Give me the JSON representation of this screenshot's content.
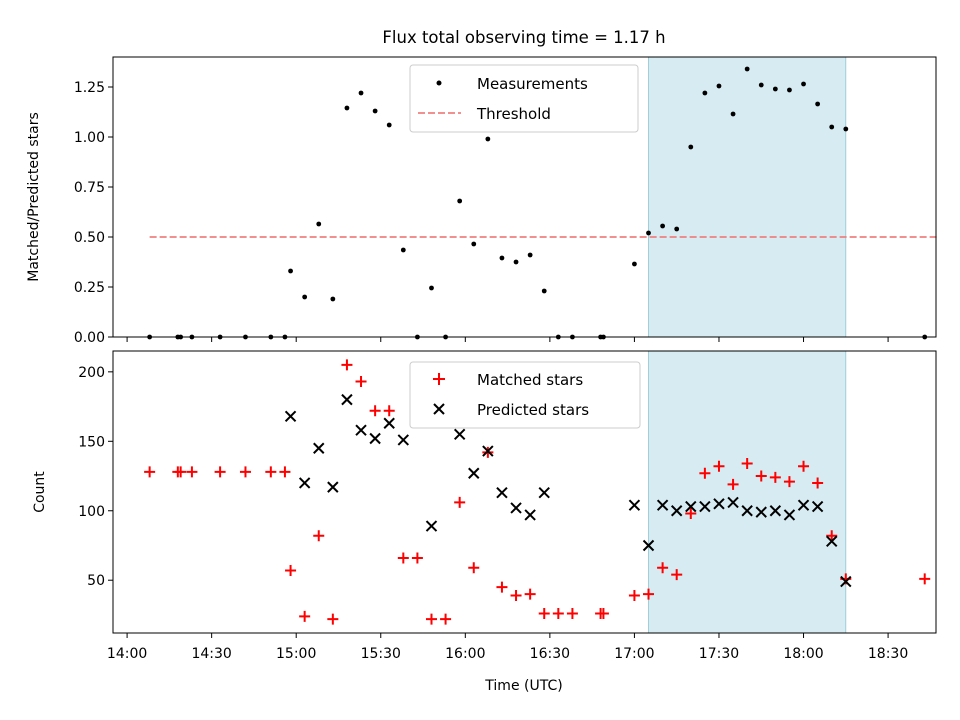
{
  "chart_data": {
    "title": "Flux total observing time = 1.17 h",
    "xlabel": "Time (UTC)",
    "x_tick_labels": [
      "14:00",
      "14:30",
      "15:00",
      "15:30",
      "16:00",
      "16:30",
      "17:00",
      "17:30",
      "18:00",
      "18:30"
    ],
    "x_ticks_min": [
      840,
      870,
      900,
      930,
      960,
      990,
      1020,
      1050,
      1080,
      1110
    ],
    "xlim_min": [
      835,
      1127
    ],
    "shaded_span_min": [
      1025,
      1095
    ],
    "shade_color": "#add8e6",
    "panels": [
      {
        "type": "scatter",
        "ylabel": "Matched/Predicted stars",
        "ylim": [
          0,
          1.4
        ],
        "y_ticks": [
          0,
          0.25,
          0.5,
          0.75,
          1.0,
          1.25
        ],
        "y_tick_labels": [
          "0.00",
          "0.25",
          "0.50",
          "0.75",
          "1.00",
          "1.25"
        ],
        "legend": {
          "placement": "upper-center",
          "entries": [
            "Measurements",
            "Threshold"
          ]
        },
        "threshold": {
          "name": "Threshold",
          "value": 0.5,
          "x_range_min": [
            848,
            1128
          ],
          "color": "#f08080"
        },
        "series": [
          {
            "name": "Measurements",
            "marker": "dot",
            "color": "#000000",
            "points": [
              [
                848,
                0
              ],
              [
                858,
                0
              ],
              [
                859,
                0
              ],
              [
                863,
                0
              ],
              [
                873,
                0
              ],
              [
                882,
                0
              ],
              [
                891,
                0
              ],
              [
                896,
                0
              ],
              [
                898,
                0.33
              ],
              [
                903,
                0.2
              ],
              [
                908,
                0.565
              ],
              [
                913,
                0.19
              ],
              [
                918,
                1.145
              ],
              [
                923,
                1.22
              ],
              [
                928,
                1.13
              ],
              [
                933,
                1.06
              ],
              [
                938,
                0.435
              ],
              [
                943,
                0
              ],
              [
                948,
                0.245
              ],
              [
                953,
                0
              ],
              [
                958,
                0.68
              ],
              [
                963,
                0.465
              ],
              [
                968,
                0.99
              ],
              [
                973,
                0.395
              ],
              [
                978,
                0.375
              ],
              [
                983,
                0.41
              ],
              [
                988,
                0.23
              ],
              [
                993,
                0
              ],
              [
                998,
                0
              ],
              [
                1008,
                0
              ],
              [
                1009,
                0
              ],
              [
                1020,
                0.365
              ],
              [
                1025,
                0.52
              ],
              [
                1030,
                0.555
              ],
              [
                1035,
                0.54
              ],
              [
                1040,
                0.95
              ],
              [
                1045,
                1.22
              ],
              [
                1050,
                1.255
              ],
              [
                1055,
                1.115
              ],
              [
                1060,
                1.34
              ],
              [
                1065,
                1.26
              ],
              [
                1070,
                1.24
              ],
              [
                1075,
                1.235
              ],
              [
                1080,
                1.265
              ],
              [
                1085,
                1.165
              ],
              [
                1090,
                1.05
              ],
              [
                1095,
                1.04
              ],
              [
                1123,
                0
              ]
            ]
          }
        ]
      },
      {
        "type": "scatter",
        "ylabel": "Count",
        "ylim": [
          12,
          215
        ],
        "y_ticks": [
          50,
          100,
          150,
          200
        ],
        "y_tick_labels": [
          "50",
          "100",
          "150",
          "200"
        ],
        "legend": {
          "placement": "upper-center",
          "entries": [
            "Matched stars",
            "Predicted stars"
          ]
        },
        "series": [
          {
            "name": "Matched stars",
            "marker": "plus",
            "color": "#ff0000",
            "points": [
              [
                848,
                128
              ],
              [
                858,
                128
              ],
              [
                859,
                128
              ],
              [
                863,
                128
              ],
              [
                873,
                128
              ],
              [
                882,
                128
              ],
              [
                891,
                128
              ],
              [
                896,
                128
              ],
              [
                898,
                57
              ],
              [
                903,
                24
              ],
              [
                908,
                82
              ],
              [
                913,
                22
              ],
              [
                918,
                205
              ],
              [
                923,
                193
              ],
              [
                928,
                172
              ],
              [
                933,
                172
              ],
              [
                938,
                66
              ],
              [
                943,
                66
              ],
              [
                948,
                22
              ],
              [
                953,
                22
              ],
              [
                958,
                106
              ],
              [
                963,
                59
              ],
              [
                968,
                142
              ],
              [
                973,
                45
              ],
              [
                978,
                39
              ],
              [
                983,
                40
              ],
              [
                988,
                26
              ],
              [
                993,
                26
              ],
              [
                998,
                26
              ],
              [
                1008,
                26
              ],
              [
                1009,
                26
              ],
              [
                1020,
                39
              ],
              [
                1025,
                40
              ],
              [
                1030,
                59
              ],
              [
                1035,
                54
              ],
              [
                1040,
                98
              ],
              [
                1045,
                127
              ],
              [
                1050,
                132
              ],
              [
                1055,
                119
              ],
              [
                1060,
                134
              ],
              [
                1065,
                125
              ],
              [
                1070,
                124
              ],
              [
                1075,
                121
              ],
              [
                1080,
                132
              ],
              [
                1085,
                120
              ],
              [
                1090,
                82
              ],
              [
                1095,
                51
              ],
              [
                1123,
                51
              ]
            ]
          },
          {
            "name": "Predicted stars",
            "marker": "x",
            "color": "#000000",
            "points": [
              [
                898,
                168
              ],
              [
                903,
                120
              ],
              [
                908,
                145
              ],
              [
                913,
                117
              ],
              [
                918,
                180
              ],
              [
                923,
                158
              ],
              [
                928,
                152
              ],
              [
                933,
                163
              ],
              [
                938,
                151
              ],
              [
                948,
                89
              ],
              [
                958,
                155
              ],
              [
                963,
                127
              ],
              [
                968,
                143
              ],
              [
                973,
                113
              ],
              [
                978,
                102
              ],
              [
                983,
                97
              ],
              [
                988,
                113
              ],
              [
                1020,
                104
              ],
              [
                1025,
                75
              ],
              [
                1030,
                104
              ],
              [
                1035,
                100
              ],
              [
                1040,
                103
              ],
              [
                1045,
                103
              ],
              [
                1050,
                105
              ],
              [
                1055,
                106
              ],
              [
                1060,
                100
              ],
              [
                1065,
                99
              ],
              [
                1070,
                100
              ],
              [
                1075,
                97
              ],
              [
                1080,
                104
              ],
              [
                1085,
                103
              ],
              [
                1090,
                78
              ],
              [
                1095,
                49
              ]
            ]
          }
        ]
      }
    ]
  }
}
